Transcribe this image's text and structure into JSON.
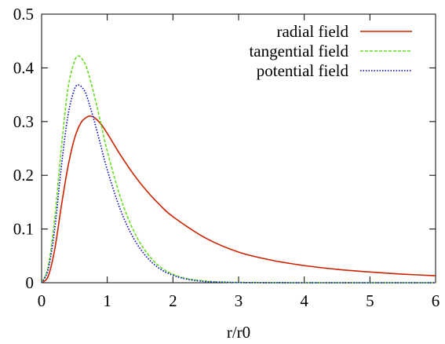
{
  "chart_data": {
    "type": "line",
    "title": "",
    "xlabel": "r/r0",
    "ylabel": "",
    "xlim": [
      0,
      6
    ],
    "ylim": [
      0,
      0.5
    ],
    "xticks": [
      0,
      1,
      2,
      3,
      4,
      5,
      6
    ],
    "yticks": [
      0,
      0.1,
      0.2,
      0.3,
      0.4,
      0.5
    ],
    "xtick_labels": [
      "0",
      "1",
      "2",
      "3",
      "4",
      "5",
      "6"
    ],
    "ytick_labels": [
      "0",
      "0.1",
      "0.2",
      "0.3",
      "0.4",
      "0.5"
    ],
    "grid": false,
    "legend_position": "top-right",
    "series": [
      {
        "name": "radial field",
        "color": "#cc2200",
        "dash": "solid",
        "x": [
          0,
          0.1,
          0.2,
          0.3,
          0.4,
          0.5,
          0.6,
          0.7,
          0.75,
          0.8,
          0.9,
          1.0,
          1.2,
          1.4,
          1.6,
          1.8,
          2.0,
          2.5,
          3.0,
          3.5,
          4.0,
          4.5,
          5.0,
          5.5,
          6.0
        ],
        "y": [
          0,
          0.012,
          0.062,
          0.142,
          0.215,
          0.268,
          0.298,
          0.309,
          0.31,
          0.308,
          0.296,
          0.278,
          0.238,
          0.202,
          0.171,
          0.145,
          0.123,
          0.083,
          0.057,
          0.042,
          0.032,
          0.025,
          0.02,
          0.016,
          0.013
        ]
      },
      {
        "name": "tangential field",
        "color": "#66dd22",
        "dash": "dashed",
        "x": [
          0,
          0.1,
          0.2,
          0.3,
          0.4,
          0.5,
          0.57,
          0.65,
          0.7,
          0.8,
          0.9,
          1.0,
          1.2,
          1.4,
          1.6,
          1.8,
          2.0,
          2.2,
          2.5,
          2.8,
          3.0,
          3.5,
          4.0,
          5.0,
          6.0
        ],
        "y": [
          0,
          0.03,
          0.12,
          0.25,
          0.36,
          0.412,
          0.422,
          0.41,
          0.395,
          0.35,
          0.298,
          0.245,
          0.159,
          0.097,
          0.056,
          0.03,
          0.016,
          0.008,
          0.003,
          0.001,
          0.0005,
          0.0001,
          0,
          0,
          0
        ]
      },
      {
        "name": "potential field",
        "color": "#0000cc",
        "dash": "dotted",
        "x": [
          0,
          0.1,
          0.2,
          0.3,
          0.4,
          0.5,
          0.57,
          0.65,
          0.7,
          0.8,
          0.9,
          1.0,
          1.2,
          1.4,
          1.6,
          1.8,
          2.0,
          2.2,
          2.5,
          2.8,
          3.0,
          3.5,
          4.0,
          5.0,
          6.0
        ],
        "y": [
          0,
          0.025,
          0.1,
          0.215,
          0.31,
          0.36,
          0.368,
          0.358,
          0.343,
          0.302,
          0.256,
          0.21,
          0.136,
          0.083,
          0.048,
          0.026,
          0.014,
          0.007,
          0.002,
          0.001,
          0.0004,
          0.0001,
          0,
          0,
          0
        ]
      }
    ]
  }
}
